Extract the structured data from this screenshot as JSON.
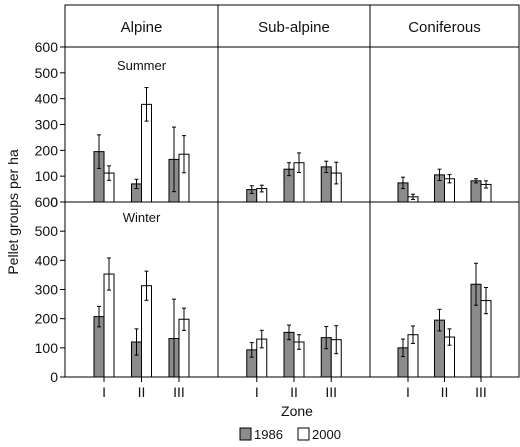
{
  "chart_data": {
    "type": "bar",
    "ylabel": "Pellet groups per ha",
    "xlabel": "Zone",
    "ylim": [
      0,
      600
    ],
    "yticks": [
      0,
      100,
      200,
      300,
      400,
      500,
      600
    ],
    "categories": [
      "I",
      "II",
      "III"
    ],
    "columns": [
      "Alpine",
      "Sub-alpine",
      "Coniferous"
    ],
    "rows": [
      "Summer",
      "Winter"
    ],
    "series_colors": {
      "1986": "#8c8c8c",
      "2000": "#ffffff"
    },
    "legend": {
      "placement": "bottom-center",
      "labels": [
        "1986",
        "2000"
      ]
    },
    "grid": false,
    "panels": [
      {
        "row": "Summer",
        "column": "Alpine",
        "series": [
          {
            "name": "1986",
            "values": [
              195,
              70,
              165
            ],
            "errors": [
              65,
              18,
              125
            ]
          },
          {
            "name": "2000",
            "values": [
              112,
              378,
              185
            ],
            "errors": [
              28,
              65,
              72
            ]
          }
        ]
      },
      {
        "row": "Summer",
        "column": "Sub-alpine",
        "series": [
          {
            "name": "1986",
            "values": [
              48,
              127,
              136
            ],
            "errors": [
              15,
              25,
              22
            ]
          },
          {
            "name": "2000",
            "values": [
              52,
              152,
              112
            ],
            "errors": [
              13,
              38,
              42
            ]
          }
        ]
      },
      {
        "row": "Summer",
        "column": "Coniferous",
        "series": [
          {
            "name": "1986",
            "values": [
              74,
              105,
              82
            ],
            "errors": [
              22,
              22,
              8
            ]
          },
          {
            "name": "2000",
            "values": [
              20,
              90,
              68
            ],
            "errors": [
              10,
              16,
              14
            ]
          }
        ]
      },
      {
        "row": "Winter",
        "column": "Alpine",
        "series": [
          {
            "name": "1986",
            "values": [
              207,
              120,
              132
            ],
            "errors": [
              35,
              45,
              135
            ]
          },
          {
            "name": "2000",
            "values": [
              353,
              313,
              198
            ],
            "errors": [
              55,
              50,
              38
            ]
          }
        ]
      },
      {
        "row": "Winter",
        "column": "Sub-alpine",
        "series": [
          {
            "name": "1986",
            "values": [
              93,
              153,
              135
            ],
            "errors": [
              25,
              25,
              38
            ]
          },
          {
            "name": "2000",
            "values": [
              130,
              120,
              128
            ],
            "errors": [
              30,
              25,
              48
            ]
          }
        ]
      },
      {
        "row": "Winter",
        "column": "Coniferous",
        "series": [
          {
            "name": "1986",
            "values": [
              100,
              195,
              318
            ],
            "errors": [
              30,
              37,
              72
            ]
          },
          {
            "name": "2000",
            "values": [
              145,
              137,
              262
            ],
            "errors": [
              30,
              28,
              45
            ]
          }
        ]
      }
    ]
  }
}
